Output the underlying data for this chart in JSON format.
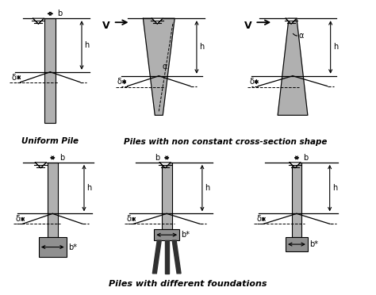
{
  "title_top": "Piles with non constant cross-section shape",
  "title_bottom": "Piles with different foundations",
  "label_uniform": "Uniform Pile",
  "bg_color": "#ffffff",
  "pile_color": "#b0b0b0",
  "text_color": "#000000",
  "pile_dark_color": "#909090",
  "leg_color": "#303030"
}
